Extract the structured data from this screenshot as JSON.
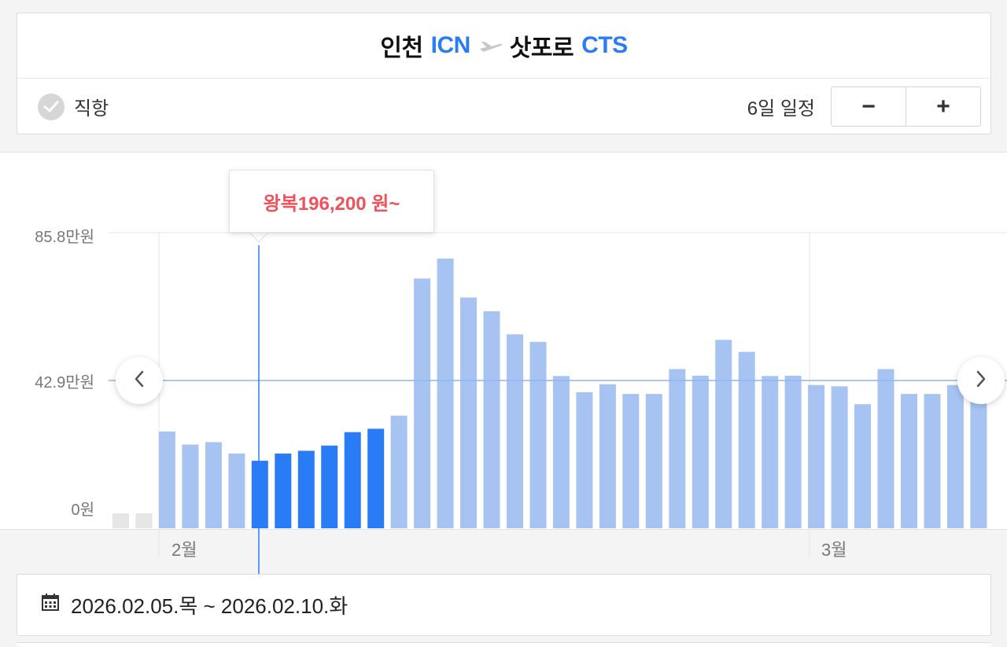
{
  "route": {
    "origin_city": "인천",
    "origin_code": "ICN",
    "destination_city": "삿포로",
    "destination_code": "CTS",
    "plane_icon": "plane-icon"
  },
  "options": {
    "direct_label": "직항",
    "direct_checked": true,
    "duration_label": "6일 일정",
    "minus_label": "−",
    "plus_label": "+"
  },
  "chart": {
    "y_labels": [
      "85.8만원",
      "42.9만원",
      "0원"
    ],
    "month_labels": [
      "2월",
      "3월"
    ],
    "tooltip_prefix": "왕복",
    "tooltip_price": "196,200 원~",
    "colors": {
      "bar_default": "#a7c3f2",
      "bar_selected": "#2a7bf6",
      "bar_unavailable": "#e6e6e6",
      "guide_line": "#2a7bf6",
      "tooltip_text": "#f0515a"
    }
  },
  "chart_data": {
    "type": "bar",
    "unit": "만원",
    "ylim": [
      0,
      85.8
    ],
    "reference_line": 42.9,
    "month_markers": [
      "2월",
      "3월"
    ],
    "values": [
      0.2,
      0.2,
      28.1,
      24.3,
      25.0,
      21.7,
      19.6,
      21.7,
      22.5,
      24.0,
      27.9,
      28.9,
      32.7,
      72.5,
      78.3,
      67.0,
      63.0,
      56.3,
      54.1,
      44.2,
      39.5,
      41.8,
      39.0,
      39.0,
      46.2,
      44.3,
      54.7,
      51.2,
      44.2,
      44.3,
      41.6,
      41.2,
      36.0,
      46.2,
      39.0,
      39.0,
      41.6,
      39.5
    ],
    "state": [
      "unavailable",
      "unavailable",
      "default",
      "default",
      "default",
      "default",
      "selected",
      "selected",
      "selected",
      "selected",
      "selected",
      "selected",
      "default",
      "default",
      "default",
      "default",
      "default",
      "default",
      "default",
      "default",
      "default",
      "default",
      "default",
      "default",
      "default",
      "default",
      "default",
      "default",
      "default",
      "default",
      "default",
      "default",
      "default",
      "default",
      "default",
      "default",
      "default",
      "default"
    ]
  },
  "date_range": {
    "calendar_icon": "calendar-icon",
    "text": "2026.02.05.목 ~ 2026.02.10.화"
  }
}
